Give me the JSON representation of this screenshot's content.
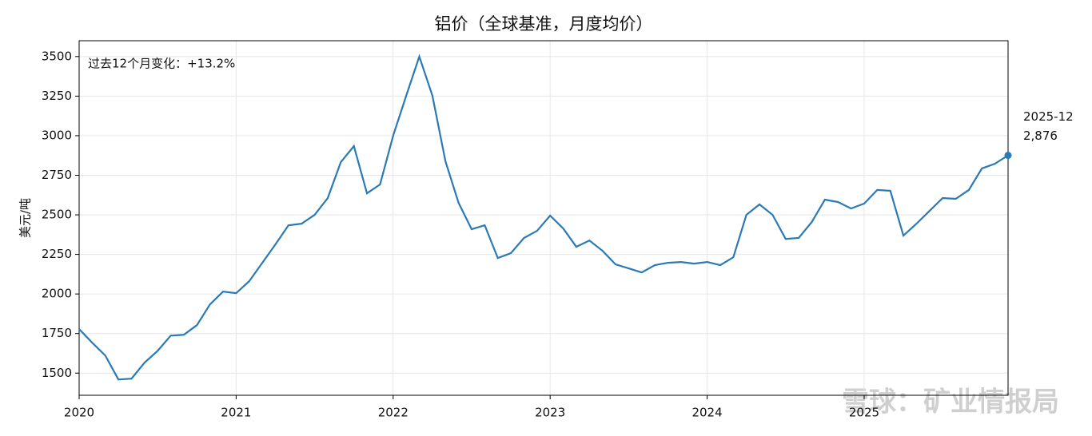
{
  "chart_data": {
    "type": "line",
    "title": "铝价（全球基准，月度均价）",
    "ylabel": "美元/吨",
    "annotation": "过去12个月变化：+13.2%",
    "watermark": "雪球：矿业情报局",
    "color": "#2a7ab5",
    "grid": true,
    "x": [
      "2020-01",
      "2020-02",
      "2020-03",
      "2020-04",
      "2020-05",
      "2020-06",
      "2020-07",
      "2020-08",
      "2020-09",
      "2020-10",
      "2020-11",
      "2020-12",
      "2021-01",
      "2021-02",
      "2021-03",
      "2021-04",
      "2021-05",
      "2021-06",
      "2021-07",
      "2021-08",
      "2021-09",
      "2021-10",
      "2021-11",
      "2021-12",
      "2022-01",
      "2022-02",
      "2022-03",
      "2022-04",
      "2022-05",
      "2022-06",
      "2022-07",
      "2022-08",
      "2022-09",
      "2022-10",
      "2022-11",
      "2022-12",
      "2023-01",
      "2023-02",
      "2023-03",
      "2023-04",
      "2023-05",
      "2023-06",
      "2023-07",
      "2023-08",
      "2023-09",
      "2023-10",
      "2023-11",
      "2023-12",
      "2024-01",
      "2024-02",
      "2024-03",
      "2024-04",
      "2024-05",
      "2024-06",
      "2024-07",
      "2024-08",
      "2024-09",
      "2024-10",
      "2024-11",
      "2024-12",
      "2025-01",
      "2025-02",
      "2025-03",
      "2025-04",
      "2025-05",
      "2025-06",
      "2025-07",
      "2025-08",
      "2025-09",
      "2025-10",
      "2025-11",
      "2025-12"
    ],
    "values": [
      1778,
      1692,
      1611,
      1460,
      1465,
      1566,
      1641,
      1737,
      1742,
      1803,
      1934,
      2015,
      2005,
      2081,
      2197,
      2313,
      2434,
      2444,
      2500,
      2606,
      2833,
      2934,
      2636,
      2692,
      3000,
      3253,
      3500,
      3253,
      2838,
      2576,
      2409,
      2434,
      2227,
      2258,
      2354,
      2399,
      2495,
      2414,
      2298,
      2338,
      2273,
      2187,
      2162,
      2136,
      2182,
      2197,
      2202,
      2192,
      2202,
      2182,
      2232,
      2500,
      2566,
      2500,
      2348,
      2354,
      2455,
      2596,
      2581,
      2540,
      2571,
      2657,
      2652,
      2369,
      2444,
      2525,
      2606,
      2601,
      2657,
      2793,
      2823,
      2876
    ],
    "value_labels": [
      null,
      null,
      null,
      null,
      null,
      null,
      null,
      null,
      null,
      null,
      null,
      null,
      null,
      null,
      null,
      null,
      null,
      null,
      null,
      null,
      null,
      null,
      null,
      null,
      null,
      null,
      null,
      null,
      null,
      null,
      null,
      null,
      null,
      null,
      null,
      null,
      null,
      null,
      null,
      null,
      null,
      null,
      null,
      null,
      null,
      null,
      null,
      null,
      null,
      null,
      null,
      null,
      null,
      null,
      null,
      null,
      null,
      null,
      null,
      null,
      null,
      null,
      null,
      null,
      null,
      null,
      null,
      null,
      null,
      null,
      null,
      "2,876"
    ],
    "xlim": [
      "2020-01",
      "2025-12"
    ],
    "xticks": [
      {
        "value": "2020-01",
        "label": "2020"
      },
      {
        "value": "2021-01",
        "label": "2021"
      },
      {
        "value": "2022-01",
        "label": "2022"
      },
      {
        "value": "2023-01",
        "label": "2023"
      },
      {
        "value": "2024-01",
        "label": "2024"
      },
      {
        "value": "2025-01",
        "label": "2025"
      }
    ],
    "ylim": [
      1360,
      3600
    ],
    "yticks": [
      1500,
      1750,
      2000,
      2250,
      2500,
      2750,
      3000,
      3250,
      3500
    ]
  }
}
